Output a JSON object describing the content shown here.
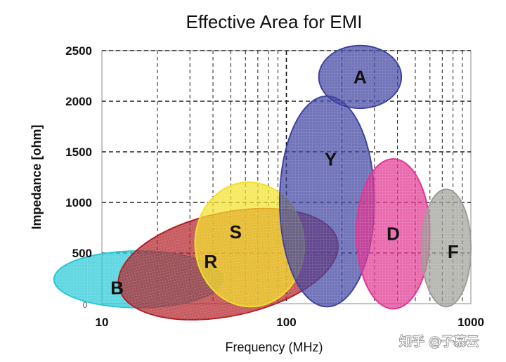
{
  "chart_data": {
    "type": "scatter",
    "title": "Effective Area for EMI",
    "xlabel": "Frequency (MHz)",
    "ylabel": "Impedance [ohm]",
    "x_scale": "log",
    "xlim": [
      10,
      1000
    ],
    "ylim": [
      0,
      2500
    ],
    "x_ticks": [
      "10",
      "100",
      "1000"
    ],
    "y_ticks": [
      "500",
      "1000",
      "1500",
      "2000",
      "2500"
    ],
    "grid": true,
    "regions": [
      {
        "name": "B",
        "x_range": [
          5.5,
          45
        ],
        "y_range": [
          -40,
          520
        ],
        "color": "#22c7d6"
      },
      {
        "name": "R",
        "x_range": [
          12,
          195
        ],
        "y_range": [
          -120,
          900
        ],
        "color": "#b01c22"
      },
      {
        "name": "S",
        "x_range": [
          32,
          125
        ],
        "y_range": [
          -30,
          1200
        ],
        "color": "#f2e024"
      },
      {
        "name": "Y",
        "x_range": [
          92,
          300
        ],
        "y_range": [
          -30,
          2050
        ],
        "color": "#3a3f9e"
      },
      {
        "name": "A",
        "x_range": [
          150,
          420
        ],
        "y_range": [
          1930,
          2550
        ],
        "color": "#3a3f9e"
      },
      {
        "name": "D",
        "x_range": [
          240,
          600
        ],
        "y_range": [
          -50,
          1430
        ],
        "color": "#e0328f"
      },
      {
        "name": "F",
        "x_range": [
          540,
          1000
        ],
        "y_range": [
          -30,
          1130
        ],
        "color": "#9c9c96"
      }
    ],
    "watermark": "知乎 @子慕云",
    "origin_label": "0"
  }
}
